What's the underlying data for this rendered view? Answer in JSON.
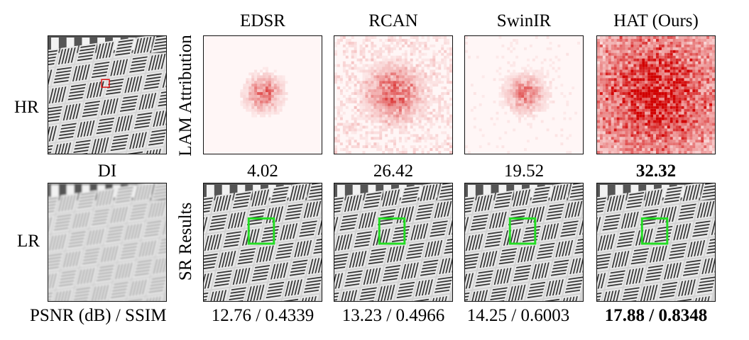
{
  "row_labels": {
    "hr": "HR",
    "lr": "LR"
  },
  "side_labels": {
    "attribution": "LAM Attribution",
    "results": "SR Results"
  },
  "di_label": "DI",
  "metric_label": "PSNR (dB) / SSIM",
  "methods": [
    {
      "name": "EDSR",
      "di": "4.02",
      "metric": "12.76 / 0.4339",
      "best": false
    },
    {
      "name": "RCAN",
      "di": "26.42",
      "metric": "13.23 / 0.4966",
      "best": false
    },
    {
      "name": "SwinIR",
      "di": "19.52",
      "metric": "14.25 / 0.6003",
      "best": false
    },
    {
      "name": "HAT (Ours)",
      "di": "32.32",
      "metric": "17.88 / 0.8348",
      "best": true
    }
  ],
  "colors": {
    "attribution": "#d10000",
    "roi_box": "#22dd22",
    "hr_marker": "#dd1111"
  }
}
